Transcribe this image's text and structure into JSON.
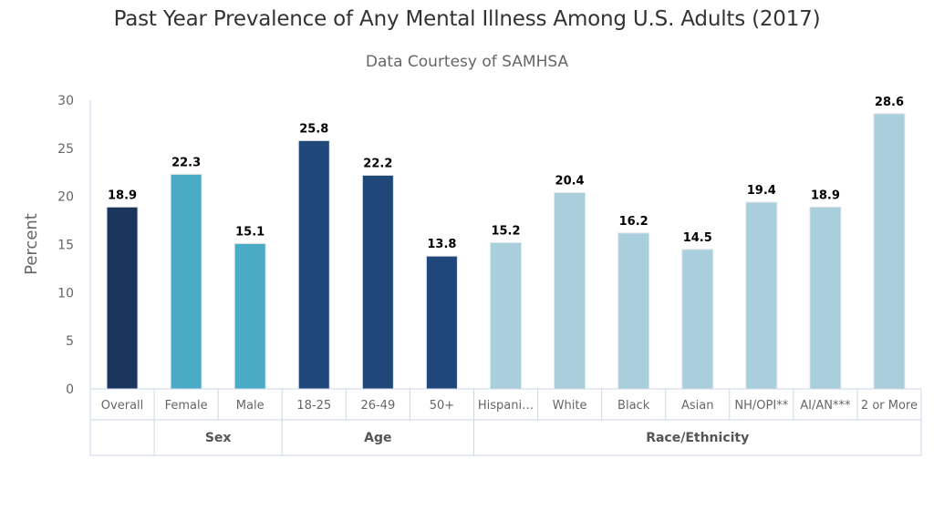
{
  "chart_data": {
    "type": "bar",
    "title": "Past Year Prevalence of Any Mental Illness Among U.S. Adults (2017)",
    "subtitle": "Data Courtesy of SAMHSA",
    "xlabel": "",
    "ylabel": "Percent",
    "ylim": [
      0,
      30
    ],
    "yticks": [
      0,
      5,
      10,
      15,
      20,
      25,
      30
    ],
    "grid": false,
    "legend": "none",
    "categories": [
      "Overall",
      "Female",
      "Male",
      "18-25",
      "26-49",
      "50+",
      "Hispani…",
      "White",
      "Black",
      "Asian",
      "NH/OPI**",
      "AI/AN***",
      "2 or More"
    ],
    "values": [
      18.9,
      22.3,
      15.1,
      25.8,
      22.2,
      13.8,
      15.2,
      20.4,
      16.2,
      14.5,
      19.4,
      18.9,
      28.6
    ],
    "data_labels": [
      "18.9",
      "22.3",
      "15.1",
      "25.8",
      "22.2",
      "13.8",
      "15.2",
      "20.4",
      "16.2",
      "14.5",
      "19.4",
      "18.9",
      "28.6"
    ],
    "groups": [
      {
        "label": "",
        "start": 0,
        "count": 1,
        "color": "#1a365d"
      },
      {
        "label": "Sex",
        "start": 1,
        "count": 2,
        "color": "#4aabc7"
      },
      {
        "label": "Age",
        "start": 3,
        "count": 3,
        "color": "#20477a"
      },
      {
        "label": "Race/Ethnicity",
        "start": 6,
        "count": 7,
        "color": "#a9cfdd"
      }
    ],
    "axis_color": "#ccd6eb"
  }
}
